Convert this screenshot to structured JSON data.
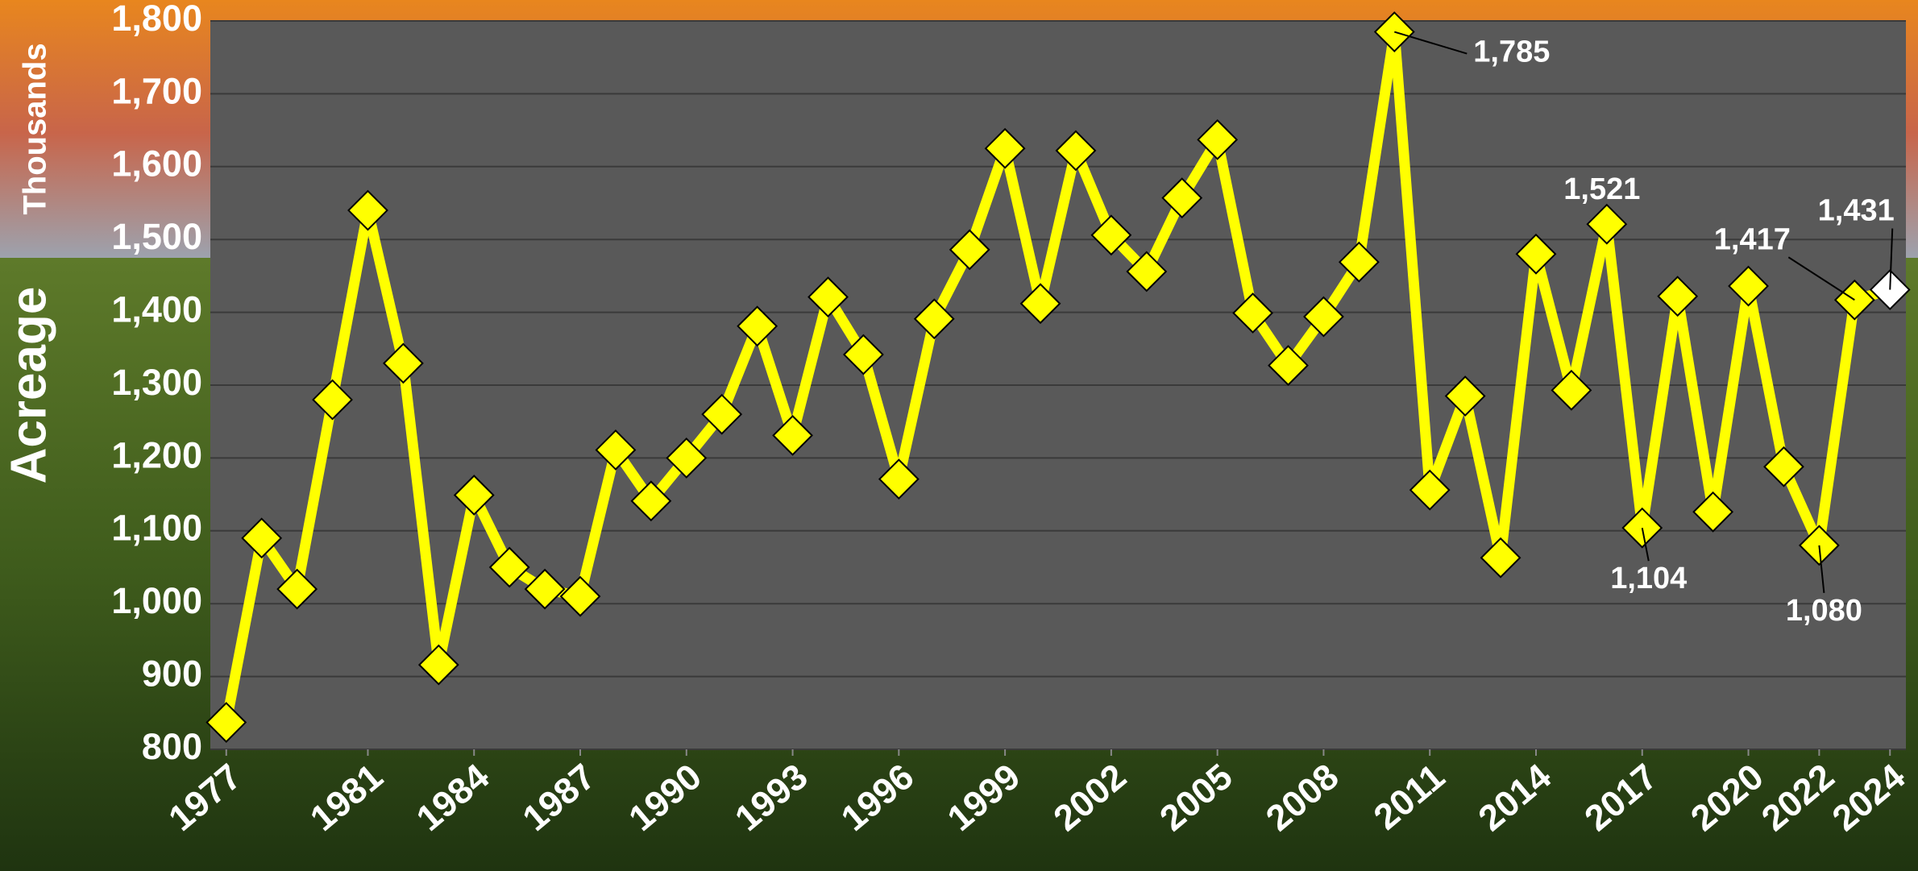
{
  "chart_data": {
    "type": "line",
    "y_label": "Acreage",
    "y_unit_label": "Thousands",
    "x": [
      1977,
      1978,
      1979,
      1980,
      1981,
      1982,
      1983,
      1984,
      1985,
      1986,
      1987,
      1988,
      1989,
      1990,
      1991,
      1992,
      1993,
      1994,
      1995,
      1996,
      1997,
      1998,
      1999,
      2000,
      2001,
      2002,
      2003,
      2004,
      2005,
      2006,
      2007,
      2008,
      2009,
      2010,
      2011,
      2012,
      2013,
      2014,
      2015,
      2016,
      2017,
      2018,
      2019,
      2020,
      2021,
      2022,
      2023,
      2024
    ],
    "series": [
      {
        "name": "Acreage",
        "color": "#ffff00",
        "values": [
          837,
          1090,
          1020,
          1280,
          1540,
          1330,
          916,
          1149,
          1050,
          1020,
          1010,
          1211,
          1141,
          1200,
          1260,
          1381,
          1231,
          1421,
          1342,
          1171,
          1391,
          1486,
          1625,
          1412,
          1622,
          1506,
          1456,
          1557,
          1637,
          1399,
          1327,
          1394,
          1469,
          1785,
          1156,
          1285,
          1063,
          1480,
          1293,
          1521,
          1104,
          1422,
          1126,
          1436,
          1188,
          1080,
          1417,
          1431
        ],
        "value_labels": [
          null,
          null,
          null,
          null,
          null,
          null,
          null,
          null,
          null,
          null,
          null,
          null,
          null,
          null,
          null,
          null,
          null,
          null,
          null,
          null,
          null,
          null,
          null,
          null,
          null,
          null,
          null,
          null,
          null,
          null,
          null,
          null,
          null,
          "1,785",
          null,
          null,
          null,
          null,
          null,
          "1,521",
          "1,104",
          null,
          null,
          null,
          null,
          "1,080",
          "1,417",
          "1,431"
        ],
        "marker_colors": [
          "#ffff00",
          "#ffff00",
          "#ffff00",
          "#ffff00",
          "#ffff00",
          "#ffff00",
          "#ffff00",
          "#ffff00",
          "#ffff00",
          "#ffff00",
          "#ffff00",
          "#ffff00",
          "#ffff00",
          "#ffff00",
          "#ffff00",
          "#ffff00",
          "#ffff00",
          "#ffff00",
          "#ffff00",
          "#ffff00",
          "#ffff00",
          "#ffff00",
          "#ffff00",
          "#ffff00",
          "#ffff00",
          "#ffff00",
          "#ffff00",
          "#ffff00",
          "#ffff00",
          "#ffff00",
          "#ffff00",
          "#ffff00",
          "#ffff00",
          "#ffff00",
          "#ffff00",
          "#ffff00",
          "#ffff00",
          "#ffff00",
          "#ffff00",
          "#ffff00",
          "#ffff00",
          "#ffff00",
          "#ffff00",
          "#ffff00",
          "#ffff00",
          "#ffff00",
          "#ffff00",
          "#ffffff"
        ]
      }
    ],
    "xlim": [
      1976.55,
      2024.45
    ],
    "xticks": [
      1977,
      1981,
      1984,
      1987,
      1990,
      1993,
      1996,
      1999,
      2002,
      2005,
      2008,
      2011,
      2014,
      2017,
      2020,
      2022,
      2024
    ],
    "ylim": [
      800,
      1800
    ],
    "yticks": [
      800,
      {
        "value": 900,
        "label": "900"
      },
      {
        "value": 1000,
        "label": "1,000"
      },
      {
        "value": 1100,
        "label": "1,100"
      },
      {
        "value": 1200,
        "label": "1,200"
      },
      {
        "value": 1300,
        "label": "1,300"
      },
      {
        "value": 1400,
        "label": "1,400"
      },
      {
        "value": 1500,
        "label": "1,500"
      },
      {
        "value": 1600,
        "label": "1,600"
      },
      {
        "value": 1700,
        "label": "1,700"
      },
      {
        "value": 1800,
        "label": "1,800"
      }
    ],
    "grid": true
  }
}
